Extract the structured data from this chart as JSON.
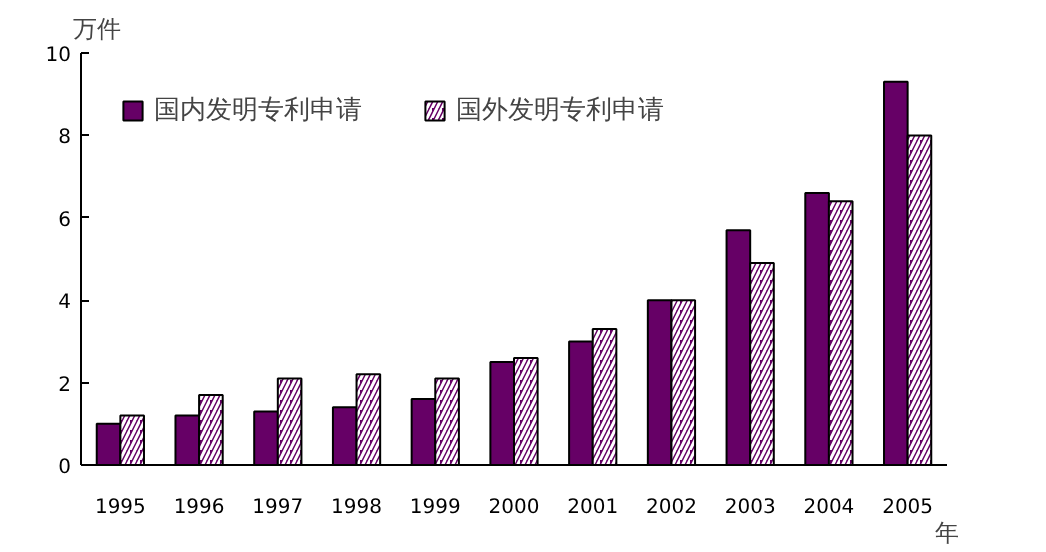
{
  "chart_data": {
    "type": "bar",
    "xlabel": "年",
    "ylabel": "万件",
    "categories": [
      "1995",
      "1996",
      "1997",
      "1998",
      "1999",
      "2000",
      "2001",
      "2002",
      "2003",
      "2004",
      "2005"
    ],
    "series": [
      {
        "name": "国内发明专利申请",
        "color": "#660066",
        "values": [
          1.0,
          1.2,
          1.3,
          1.4,
          1.6,
          2.5,
          3.0,
          4.0,
          5.7,
          6.6,
          9.3
        ]
      },
      {
        "name": "国外发明专利申请",
        "color": "#660066",
        "values": [
          1.2,
          1.7,
          2.1,
          2.2,
          2.1,
          2.6,
          3.3,
          4.0,
          4.9,
          6.4,
          8.0
        ]
      }
    ],
    "ylim": [
      0,
      10
    ],
    "yticks": [
      0,
      2,
      4,
      6,
      8,
      10
    ],
    "grid": false,
    "legend": "top left"
  }
}
